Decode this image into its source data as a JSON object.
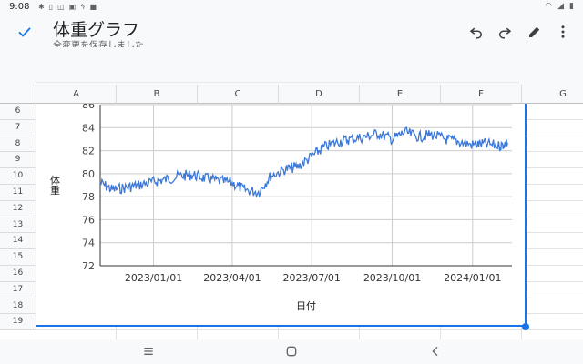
{
  "status_bar": {
    "time": "9:08",
    "left_icons": [
      "bluetooth-icon",
      "vibrate-icon",
      "nfc-icon",
      "data-icon",
      "flash-icon",
      "notification-icon"
    ],
    "right_icons": [
      "wifi-icon",
      "signal-icon",
      "battery-icon"
    ]
  },
  "header": {
    "title": "体重グラフ",
    "subtitle": "全変更を保存しました",
    "actions": [
      "undo-icon",
      "redo-icon",
      "edit-icon",
      "more-icon"
    ]
  },
  "sheet": {
    "columns": [
      "A",
      "B",
      "C",
      "D",
      "E",
      "F",
      "G"
    ],
    "rows": [
      "6",
      "7",
      "8",
      "9",
      "10",
      "11",
      "12",
      "13",
      "14",
      "15",
      "16",
      "17",
      "18",
      "19"
    ]
  },
  "colors": {
    "accent": "#1a73e8",
    "series": "#3c78d8"
  },
  "chart_data": {
    "type": "line",
    "title": "",
    "xlabel": "日付",
    "ylabel": "体重",
    "ylim": [
      72,
      86
    ],
    "yticks": [
      "72",
      "74",
      "76",
      "78",
      "80",
      "82",
      "84",
      "86"
    ],
    "xticks": [
      "2023/01/01",
      "2023/04/01",
      "2023/07/01",
      "2023/10/01",
      "2024/01/01"
    ],
    "xrange": [
      "2022/11/01",
      "2024/02/15"
    ],
    "grid": true,
    "series": [
      {
        "x": [
          "2022/11/01",
          "2022/11/15",
          "2022/12/01",
          "2022/12/15",
          "2023/01/01",
          "2023/01/15",
          "2023/02/01",
          "2023/02/15",
          "2023/03/01",
          "2023/03/15",
          "2023/04/01",
          "2023/04/15",
          "2023/05/01",
          "2023/05/15",
          "2023/06/01",
          "2023/06/15",
          "2023/07/01",
          "2023/07/15",
          "2023/08/01",
          "2023/08/15",
          "2023/09/01",
          "2023/09/15",
          "2023/10/01",
          "2023/10/15",
          "2023/11/01",
          "2023/11/15",
          "2023/12/01",
          "2023/12/15",
          "2024/01/01",
          "2024/01/15",
          "2024/02/01",
          "2024/02/10"
        ],
        "y": [
          79.2,
          78.6,
          78.8,
          79.0,
          79.3,
          79.5,
          79.8,
          79.9,
          79.6,
          79.4,
          79.2,
          78.6,
          78.4,
          79.8,
          80.4,
          80.6,
          81.5,
          82.3,
          82.8,
          83.0,
          83.2,
          83.5,
          83.0,
          83.6,
          83.2,
          83.4,
          83.0,
          82.8,
          82.5,
          82.6,
          82.4,
          82.7
        ]
      }
    ]
  }
}
